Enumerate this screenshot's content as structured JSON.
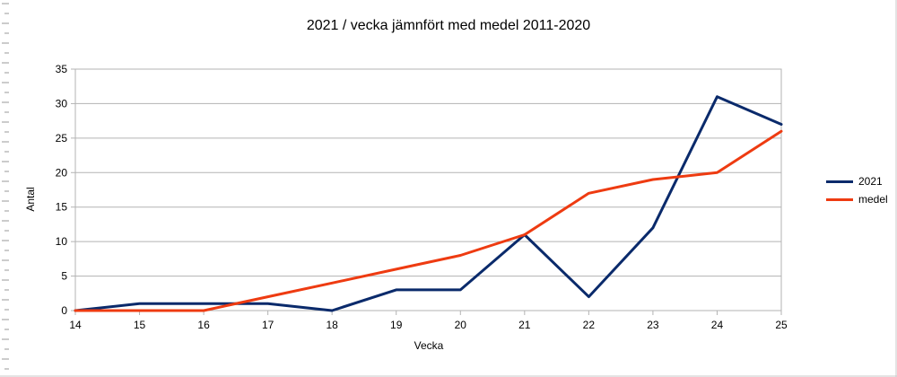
{
  "chart_data": {
    "type": "line",
    "title": "2021 / vecka jämnfört med medel 2011-2020",
    "xlabel": "Vecka",
    "ylabel": "Antal",
    "x": [
      14,
      15,
      16,
      17,
      18,
      19,
      20,
      21,
      22,
      23,
      24,
      25
    ],
    "ylim": [
      0,
      35
    ],
    "yticks": [
      0,
      5,
      10,
      15,
      20,
      25,
      30,
      35
    ],
    "grid": true,
    "legend_position": "right",
    "series": [
      {
        "name": "2021",
        "color": "#0a2a6b",
        "values": [
          0,
          1,
          1,
          1,
          0,
          3,
          3,
          11,
          2,
          12,
          31,
          27
        ]
      },
      {
        "name": "medel",
        "color": "#ee3b11",
        "values": [
          0,
          0,
          0,
          2,
          4,
          6,
          8,
          11,
          17,
          19,
          20,
          26
        ]
      }
    ]
  }
}
